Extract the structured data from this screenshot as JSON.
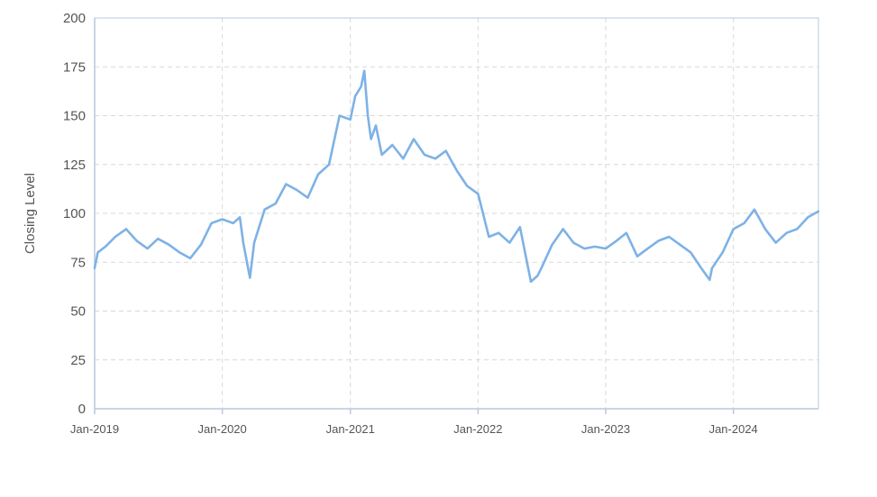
{
  "chart_data": {
    "type": "line",
    "title": "",
    "xlabel": "",
    "ylabel": "Closing Level",
    "ylim": [
      0,
      200
    ],
    "yticks": [
      0,
      25,
      50,
      75,
      100,
      125,
      150,
      175,
      200
    ],
    "xlim": [
      "2019-01-01",
      "2024-08-31"
    ],
    "xticks": [
      "Jan-2019",
      "Jan-2020",
      "Jan-2021",
      "Jan-2022",
      "Jan-2023",
      "Jan-2024"
    ],
    "grid": true,
    "legend": "none",
    "line_color": "#7eb2e5",
    "series": [
      {
        "x": [
          "2019-01-01",
          "2019-01-10",
          "2019-02-01",
          "2019-03-01",
          "2019-04-01",
          "2019-05-01",
          "2019-06-01",
          "2019-07-01",
          "2019-08-01",
          "2019-09-01",
          "2019-10-01",
          "2019-11-01",
          "2019-12-01",
          "2020-01-01",
          "2020-02-01",
          "2020-02-20",
          "2020-03-01",
          "2020-03-20",
          "2020-04-01",
          "2020-05-01",
          "2020-06-01",
          "2020-07-01",
          "2020-08-01",
          "2020-09-01",
          "2020-10-01",
          "2020-11-01",
          "2020-12-01",
          "2021-01-01",
          "2021-01-15",
          "2021-02-01",
          "2021-02-10",
          "2021-02-20",
          "2021-03-01",
          "2021-03-15",
          "2021-04-01",
          "2021-05-01",
          "2021-06-01",
          "2021-07-01",
          "2021-08-01",
          "2021-09-01",
          "2021-10-01",
          "2021-11-01",
          "2021-12-01",
          "2022-01-01",
          "2022-02-01",
          "2022-03-01",
          "2022-04-01",
          "2022-05-01",
          "2022-06-01",
          "2022-06-20",
          "2022-07-01",
          "2022-08-01",
          "2022-09-01",
          "2022-10-01",
          "2022-11-01",
          "2022-12-01",
          "2023-01-01",
          "2023-02-01",
          "2023-03-01",
          "2023-04-01",
          "2023-05-01",
          "2023-06-01",
          "2023-07-01",
          "2023-08-01",
          "2023-09-01",
          "2023-10-01",
          "2023-10-25",
          "2023-11-01",
          "2023-12-01",
          "2024-01-01",
          "2024-02-01",
          "2024-03-01",
          "2024-04-01",
          "2024-05-01",
          "2024-06-01",
          "2024-07-01",
          "2024-08-01",
          "2024-08-31"
        ],
        "y": [
          72,
          80,
          83,
          88,
          92,
          86,
          82,
          87,
          84,
          80,
          77,
          84,
          95,
          97,
          95,
          98,
          85,
          67,
          85,
          102,
          105,
          115,
          112,
          108,
          120,
          125,
          150,
          148,
          160,
          165,
          173,
          150,
          138,
          145,
          130,
          135,
          128,
          138,
          130,
          128,
          132,
          122,
          114,
          110,
          88,
          90,
          85,
          93,
          65,
          68,
          72,
          84,
          92,
          85,
          82,
          83,
          82,
          86,
          90,
          78,
          82,
          86,
          88,
          84,
          80,
          72,
          66,
          72,
          80,
          92,
          95,
          102,
          92,
          85,
          90,
          92,
          98,
          101
        ]
      }
    ]
  }
}
